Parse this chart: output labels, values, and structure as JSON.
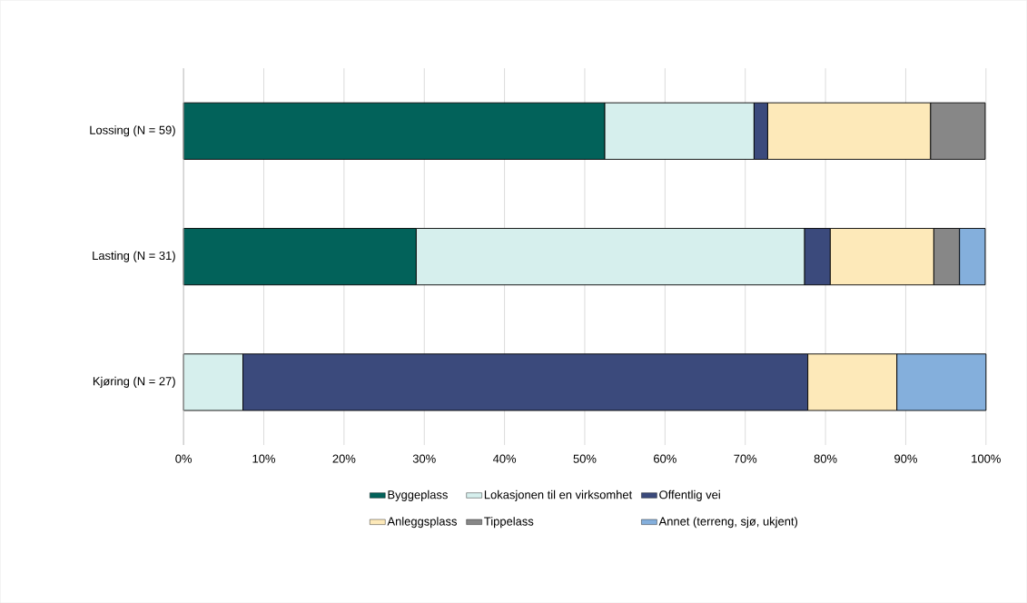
{
  "chart_data": {
    "type": "bar",
    "orientation": "horizontal",
    "stacked": true,
    "categories": [
      "Lossing (N = 59)",
      "Lasting (N = 31)",
      "Kjøring (N = 27)"
    ],
    "series": [
      {
        "name": "Byggeplass",
        "color": "#02625a",
        "values": [
          52.5,
          29.0,
          null
        ]
      },
      {
        "name": "Lokasjonen til en virksomhet",
        "color": "#d6efed",
        "values": [
          18.6,
          48.4,
          7.4
        ]
      },
      {
        "name": "Offentlig vei",
        "color": "#3b4a7c",
        "values": [
          1.7,
          3.2,
          70.4
        ]
      },
      {
        "name": "Anleggsplass",
        "color": "#fde9b9",
        "values": [
          20.3,
          12.9,
          11.1
        ]
      },
      {
        "name": "Tippelass",
        "color": "#878787",
        "values": [
          6.8,
          3.2,
          null
        ]
      },
      {
        "name": "Annet (terreng, sjø, ukjent)",
        "color": "#84afdc",
        "values": [
          null,
          3.2,
          11.1
        ]
      }
    ],
    "xlim": [
      0,
      100
    ],
    "xticks": [
      {
        "value": 0,
        "label": "0%"
      },
      {
        "value": 10,
        "label": "10%"
      },
      {
        "value": 20,
        "label": "20%"
      },
      {
        "value": 30,
        "label": "30%"
      },
      {
        "value": 40,
        "label": "40%"
      },
      {
        "value": 50,
        "label": "50%"
      },
      {
        "value": 60,
        "label": "60%"
      },
      {
        "value": 70,
        "label": "70%"
      },
      {
        "value": 80,
        "label": "80%"
      },
      {
        "value": 90,
        "label": "90%"
      },
      {
        "value": 100,
        "label": "100%"
      }
    ],
    "grid": "x",
    "legend": "bottom"
  }
}
